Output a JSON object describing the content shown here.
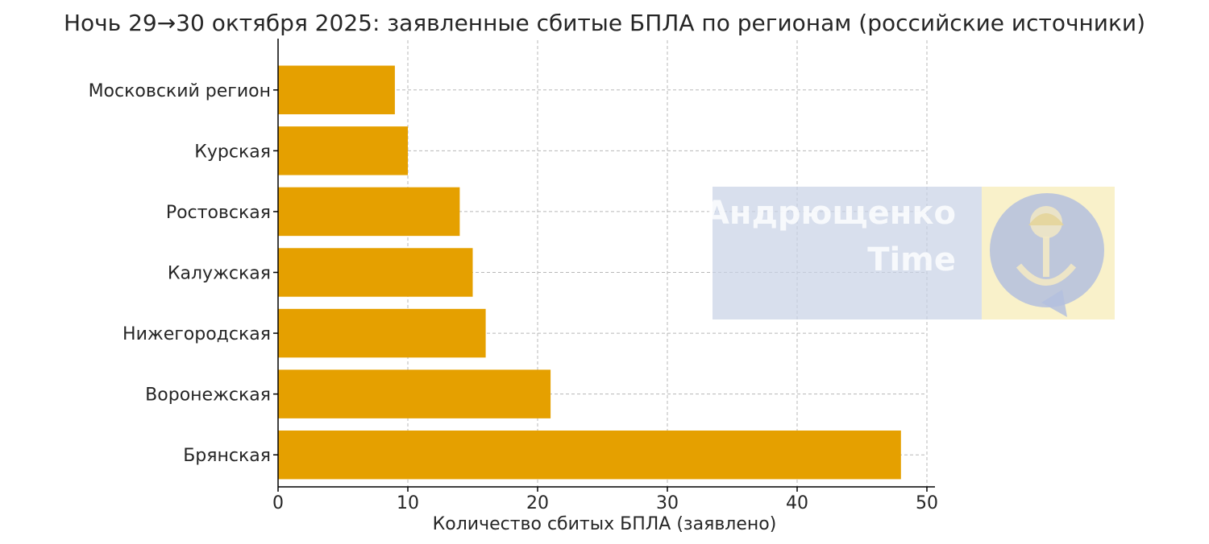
{
  "chart_data": {
    "type": "bar",
    "orientation": "horizontal",
    "title": "Ночь 29→30 октября 2025: заявленные сбитые БПЛА по регионам (российские источники)",
    "xlabel": "Количество сбитых БПЛА (заявлено)",
    "ylabel": "",
    "categories": [
      "Московский регион",
      "Курская",
      "Ростовская",
      "Калужская",
      "Нижегородская",
      "Воронежская",
      "Брянская"
    ],
    "values": [
      9,
      10,
      14,
      15,
      16,
      21,
      48
    ],
    "xlim": [
      0,
      50
    ],
    "xticks": [
      0,
      10,
      20,
      30,
      40,
      50
    ],
    "grid": true,
    "legend": "none",
    "bar_color": "#E5A000",
    "grid_color": "#B8B8B8",
    "axis_color": "#000000",
    "text_color": "#262626"
  },
  "watermark": {
    "line1": "Андрющенко",
    "line2": "Time",
    "panel_color": "#C9D3E6",
    "accent_color": "#F7EBB5",
    "badge_color": "#B4C0DE",
    "icon": "anchor-helmet-icon"
  }
}
